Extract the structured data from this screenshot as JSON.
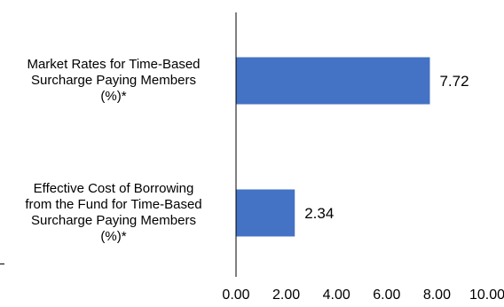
{
  "chart_data": {
    "type": "bar",
    "orientation": "horizontal",
    "title": "",
    "xlabel": "",
    "ylabel": "",
    "categories": [
      [
        "Market Rates for Time-Based",
        "Surcharge Paying Members",
        "(%)*"
      ],
      [
        "Effective Cost of Borrowing",
        "from the Fund for Time-Based",
        "Surcharge Paying Members",
        "(%)*"
      ]
    ],
    "values": [
      7.72,
      2.34
    ],
    "value_labels": [
      "7.72",
      "2.34"
    ],
    "xlim": [
      0,
      10
    ],
    "ticks": [
      "0.00",
      "2.00",
      "4.00",
      "6.00",
      "8.00",
      "10.00"
    ],
    "tick_values": [
      0,
      2,
      4,
      6,
      8,
      10
    ],
    "bar_color": "#4472C4",
    "grid": false,
    "legend": "none"
  }
}
